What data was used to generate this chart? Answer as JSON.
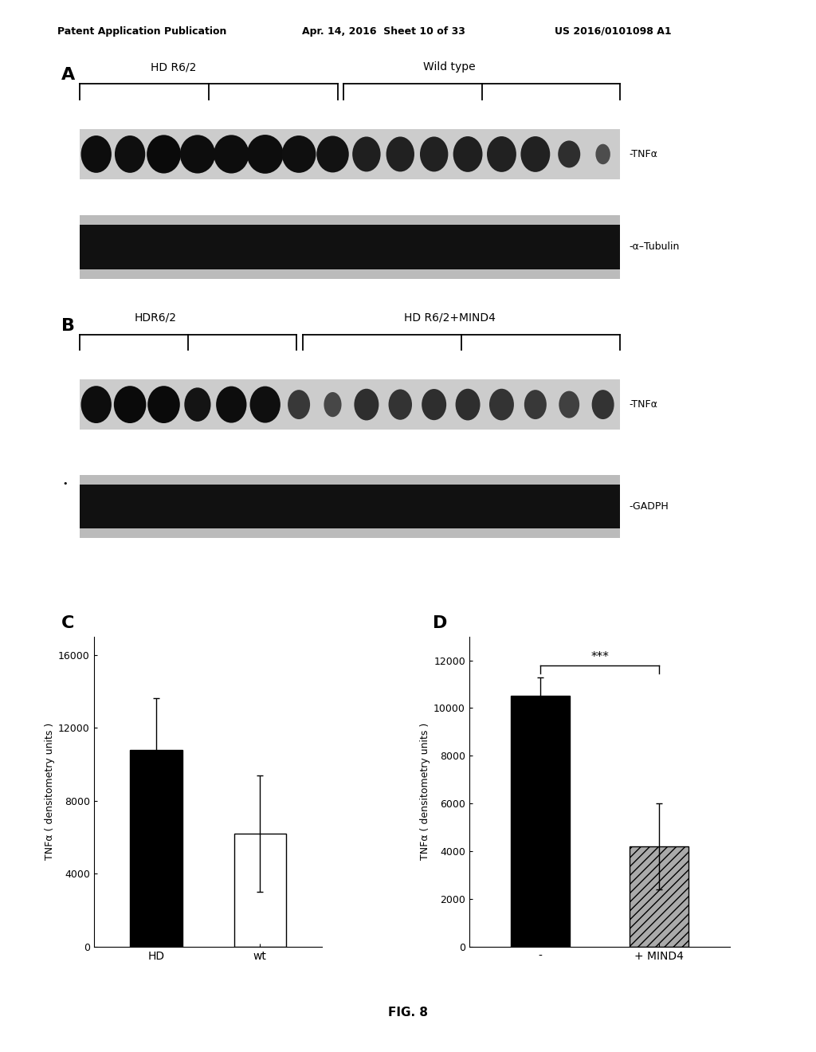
{
  "header_left": "Patent Application Publication",
  "header_mid": "Apr. 14, 2016  Sheet 10 of 33",
  "header_right": "US 2016/0101098 A1",
  "panel_A_label": "A",
  "panel_B_label": "B",
  "panel_C_label": "C",
  "panel_D_label": "D",
  "panel_A_group1_label": "HD R6/2",
  "panel_A_group2_label": "Wild type",
  "panel_A_row1_label": "-TNFα",
  "panel_A_row2_label": "-α–Tubulin",
  "panel_B_group1_label": "HDR6/2",
  "panel_B_group2_label": "HD R6/2+MIND4",
  "panel_B_row1_label": "-TNFα",
  "panel_B_row2_label": "-GADPH",
  "panel_C_ylabel": "TNFα ( densitometry units )",
  "panel_C_bar1_val": 10800,
  "panel_C_bar1_err": 2800,
  "panel_C_bar2_val": 6200,
  "panel_C_bar2_err": 3200,
  "panel_C_bar1_color": "#000000",
  "panel_C_bar2_color": "#ffffff",
  "panel_C_ylim": [
    0,
    17000
  ],
  "panel_C_yticks": [
    0,
    4000,
    8000,
    12000,
    16000
  ],
  "panel_C_xlabel_ticks": [
    "HD",
    "wt"
  ],
  "panel_D_ylabel": "TNFα ( densitometry units )",
  "panel_D_bar1_val": 10500,
  "panel_D_bar1_err": 800,
  "panel_D_bar2_val": 4200,
  "panel_D_bar2_err": 1800,
  "panel_D_bar1_color": "#000000",
  "panel_D_ylim": [
    0,
    13000
  ],
  "panel_D_yticks": [
    0,
    2000,
    4000,
    6000,
    8000,
    10000,
    12000
  ],
  "panel_D_xlabel_ticks": [
    "-",
    "+ MIND4"
  ],
  "significance_label": "***",
  "fig_label": "FIG. 8",
  "background_color": "#ffffff",
  "blot_dark": "#111111",
  "blot_bg": "#cccccc",
  "blot_band_bg": "#bbbbbb"
}
